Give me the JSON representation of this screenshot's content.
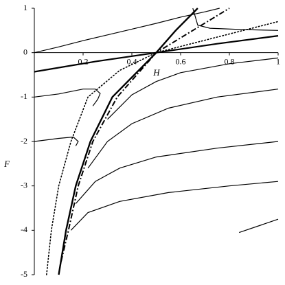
{
  "chart_data": {
    "type": "line",
    "xlabel": "H",
    "ylabel": "F",
    "xlim": [
      0,
      1
    ],
    "ylim": [
      -5,
      1
    ],
    "xticks": [
      0.2,
      0.4,
      0.6,
      0.8,
      1
    ],
    "yticks": [
      1,
      0,
      -1,
      -2,
      -3,
      -4,
      -5
    ],
    "series": [
      {
        "color": "#000",
        "style": "solid",
        "width": 1.2,
        "x": [
          0,
          0.1,
          0.2,
          0.3,
          0.4,
          0.5,
          0.6,
          0.7,
          0.76
        ],
        "values": [
          0,
          0.13,
          0.27,
          0.4,
          0.53,
          0.66,
          0.8,
          0.92,
          1
        ]
      },
      {
        "color": "#000",
        "style": "solid",
        "width": 2.2,
        "x": [
          0,
          0.25,
          0.5,
          0.75,
          1
        ],
        "values": [
          -0.43,
          -0.2,
          0,
          0.2,
          0.38
        ]
      },
      {
        "color": "#000",
        "style": "solid",
        "width": 2.4,
        "x": [
          0.1,
          0.13,
          0.17,
          0.23,
          0.32,
          0.5,
          0.58,
          0.67
        ],
        "values": [
          -5,
          -4,
          -3,
          -2,
          -1,
          0,
          0.5,
          1
        ]
      },
      {
        "color": "#000",
        "style": "dashdot",
        "width": 2,
        "x": [
          0.11,
          0.14,
          0.18,
          0.24,
          0.34,
          0.5,
          0.65,
          0.8
        ],
        "values": [
          -4.7,
          -4,
          -3,
          -2,
          -1,
          0,
          0.5,
          1
        ]
      },
      {
        "color": "#000",
        "style": "dotted",
        "width": 1.6,
        "x": [
          0.05,
          0.07,
          0.1,
          0.15,
          0.22,
          0.35,
          0.5,
          0.75,
          1
        ],
        "values": [
          -5,
          -4,
          -3,
          -2,
          -1,
          -0.4,
          0,
          0.35,
          0.7
        ]
      },
      {
        "color": "#000",
        "style": "solid",
        "width": 1.2,
        "x": [
          0.65,
          0.67,
          0.72,
          0.85,
          1
        ],
        "values": [
          1,
          0.62,
          0.55,
          0.52,
          0.5
        ]
      },
      {
        "color": "#000",
        "style": "solid",
        "width": 1.2,
        "x": [
          0,
          0.1,
          0.2,
          0.25,
          0.27,
          0.26,
          0.24
        ],
        "values": [
          -1,
          -0.93,
          -0.82,
          -0.82,
          -0.92,
          -1.05,
          -1.2
        ]
      },
      {
        "color": "#000",
        "style": "solid",
        "width": 1.2,
        "x": [
          0,
          0.1,
          0.16,
          0.18,
          0.17
        ],
        "values": [
          -2,
          -1.93,
          -1.9,
          -2,
          -2.1
        ]
      },
      {
        "color": "#000",
        "style": "solid",
        "width": 1.2,
        "x": [
          0.3,
          0.4,
          0.5,
          0.6,
          0.8,
          1
        ],
        "values": [
          -1.5,
          -0.95,
          -0.65,
          -0.45,
          -0.25,
          -0.12
        ]
      },
      {
        "color": "#000",
        "style": "solid",
        "width": 1.2,
        "x": [
          0.22,
          0.3,
          0.4,
          0.55,
          0.75,
          1
        ],
        "values": [
          -2.6,
          -2,
          -1.6,
          -1.25,
          -1,
          -0.82
        ]
      },
      {
        "color": "#000",
        "style": "solid",
        "width": 1.2,
        "x": [
          0.17,
          0.25,
          0.35,
          0.5,
          0.75,
          1
        ],
        "values": [
          -3.4,
          -2.9,
          -2.6,
          -2.35,
          -2.15,
          -2
        ]
      },
      {
        "color": "#000",
        "style": "solid",
        "width": 1.2,
        "x": [
          0.15,
          0.22,
          0.35,
          0.55,
          0.8,
          1
        ],
        "values": [
          -4,
          -3.6,
          -3.35,
          -3.15,
          -3,
          -2.9
        ]
      },
      {
        "color": "#000",
        "style": "solid",
        "width": 1.2,
        "x": [
          0.84,
          1
        ],
        "values": [
          -4.05,
          -3.75
        ]
      }
    ]
  }
}
